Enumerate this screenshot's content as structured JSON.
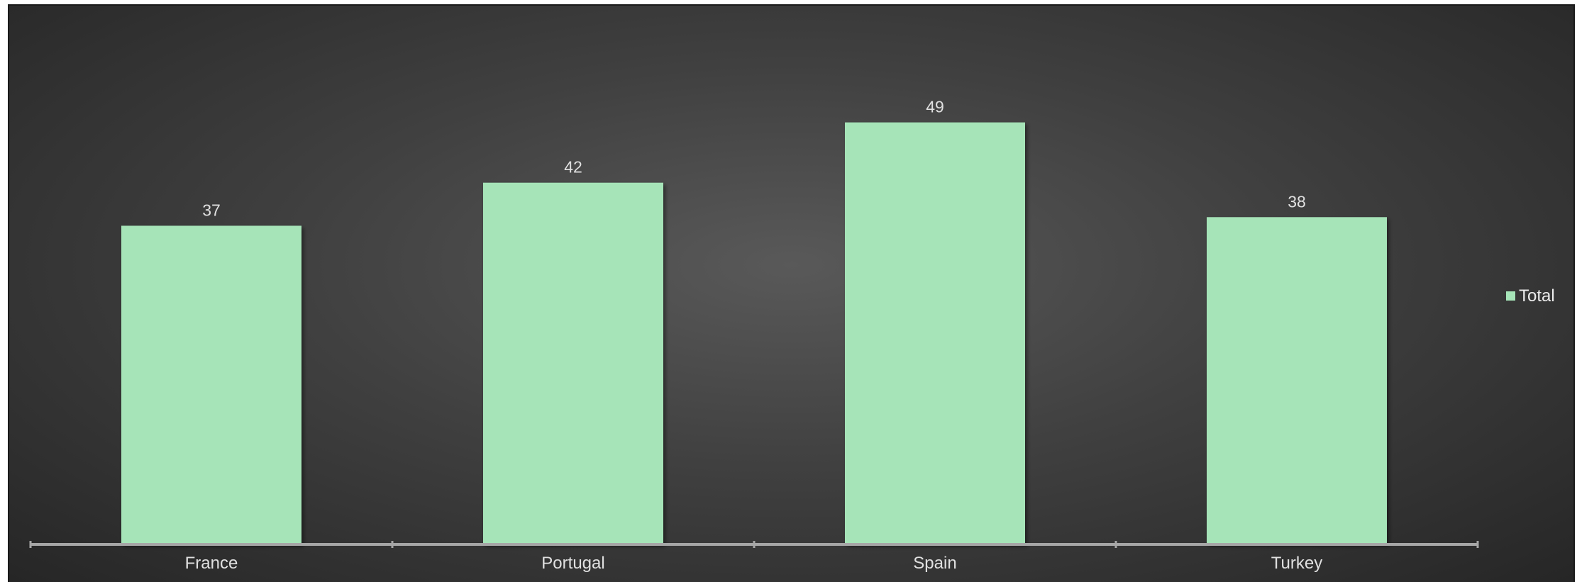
{
  "chart_data": {
    "type": "bar",
    "categories": [
      "France",
      "Portugal",
      "Spain",
      "Turkey"
    ],
    "series": [
      {
        "name": "Total",
        "values": [
          37,
          42,
          49,
          38
        ],
        "color": "#a6e4b8"
      }
    ],
    "ylim": [
      0,
      60
    ],
    "grid": false,
    "data_labels": true,
    "legend_position": "right"
  },
  "colors": {
    "bar": "#a6e4b8",
    "axis": "#a6a6a6",
    "text": "#e0e0e0"
  }
}
